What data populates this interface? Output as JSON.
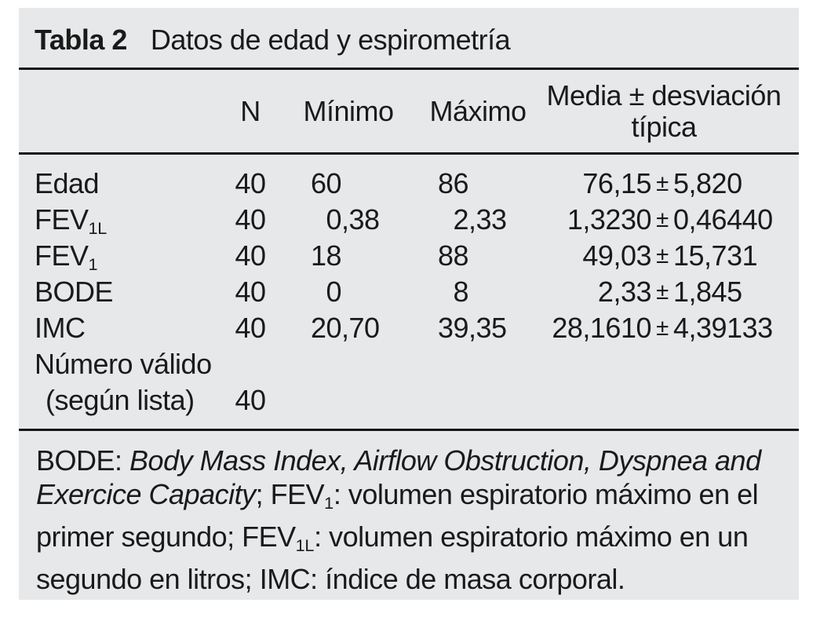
{
  "colors": {
    "panel_bg": "#e7e8e9",
    "text": "#1a1a1a",
    "rule": "#161616",
    "page_bg": "#ffffff"
  },
  "title": {
    "label": "Tabla 2",
    "text": "Datos de edad y espirometría"
  },
  "table": {
    "header": {
      "n": "N",
      "minimo": "Mínimo",
      "maximo": "Máximo",
      "media_line1": "Media ± desviación",
      "media_line2": "típica"
    },
    "rows": [
      {
        "label": "Edad",
        "label_sub": "",
        "indent": false,
        "n": "40",
        "min_int": "60",
        "min_frac": "",
        "max_int": "86",
        "max_frac": "",
        "mean": "76,15",
        "pm": "±",
        "sd": "5,820"
      },
      {
        "label": "FEV",
        "label_sub": "1L",
        "indent": false,
        "n": "40",
        "min_int": "0",
        "min_frac": ",38",
        "max_int": "2",
        "max_frac": ",33",
        "mean": "1,3230",
        "pm": "±",
        "sd": "0,46440"
      },
      {
        "label": "FEV",
        "label_sub": "1",
        "indent": false,
        "n": "40",
        "min_int": "18",
        "min_frac": "",
        "max_int": "88",
        "max_frac": "",
        "mean": "49,03",
        "pm": "±",
        "sd": "15,731"
      },
      {
        "label": "BODE",
        "label_sub": "",
        "indent": false,
        "n": "40",
        "min_int": "0",
        "min_frac": "",
        "max_int": "8",
        "max_frac": "",
        "mean": "2,33",
        "pm": "±",
        "sd": "1,845"
      },
      {
        "label": "IMC",
        "label_sub": "",
        "indent": false,
        "n": "40",
        "min_int": "20",
        "min_frac": ",70",
        "max_int": "39",
        "max_frac": ",35",
        "mean": "28,1610",
        "pm": "±",
        "sd": "4,39133"
      },
      {
        "label": "Número válido",
        "label_sub": "",
        "indent": false,
        "n": "",
        "min_int": "",
        "min_frac": "",
        "max_int": "",
        "max_frac": "",
        "mean": "",
        "pm": "",
        "sd": ""
      },
      {
        "label": "(según lista)",
        "label_sub": "",
        "indent": true,
        "n": "40",
        "min_int": "",
        "min_frac": "",
        "max_int": "",
        "max_frac": "",
        "mean": "",
        "pm": "",
        "sd": ""
      }
    ]
  },
  "footnote": {
    "lines": [
      [
        {
          "t": "BODE: "
        },
        {
          "t": "Body Mass Index, Airflow Obstruction, Dyspnea and",
          "italic": true
        }
      ],
      [
        {
          "t": "Exercice Capacity",
          "italic": true
        },
        {
          "t": "; FEV"
        },
        {
          "t": "1",
          "sub": true
        },
        {
          "t": ": volumen espiratorio máximo en el"
        }
      ],
      [
        {
          "t": "primer segundo; FEV"
        },
        {
          "t": "1L",
          "sub": true
        },
        {
          "t": ": volumen espiratorio máximo en un"
        }
      ],
      [
        {
          "t": "segundo en litros; IMC: índice de masa corporal."
        }
      ]
    ]
  }
}
